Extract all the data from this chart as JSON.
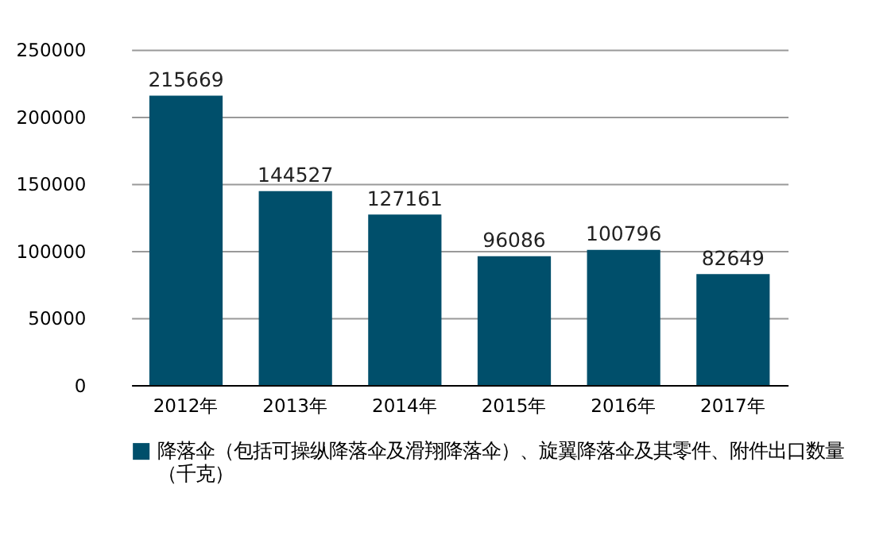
{
  "chart_data": {
    "type": "bar",
    "categories": [
      "2012年",
      "2013年",
      "2014年",
      "2015年",
      "2016年",
      "2017年"
    ],
    "series": [
      {
        "name": "降落伞（包括可操纵降落伞及滑翔降落伞）、旋翼降落伞及其零件、附件出口数量（千克）",
        "color": "#004f6b",
        "values": [
          215669,
          144527,
          127161,
          96086,
          100796,
          82649
        ]
      }
    ],
    "ylim": [
      0,
      250000
    ],
    "yticks": [
      0,
      50000,
      100000,
      150000,
      200000,
      250000
    ],
    "grid": "y",
    "data_labels": true,
    "legend": "bottom"
  }
}
